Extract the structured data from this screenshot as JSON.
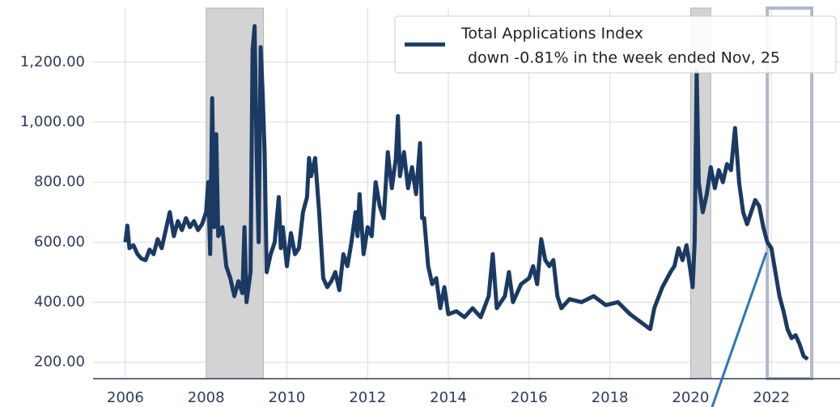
{
  "chart_data": {
    "type": "line",
    "xlim": [
      2005.2,
      2023.7
    ],
    "ylim": [
      145,
      1380
    ],
    "xticks": [
      2006,
      2008,
      2010,
      2012,
      2014,
      2016,
      2018,
      2020,
      2022
    ],
    "yticks": [
      {
        "value": 200,
        "label": "200.00"
      },
      {
        "value": 400,
        "label": "400.00"
      },
      {
        "value": 600,
        "label": "600.00"
      },
      {
        "value": 800,
        "label": "800.00"
      },
      {
        "value": 1000,
        "label": "1,000.00"
      },
      {
        "value": 1200,
        "label": "1,200.00"
      }
    ],
    "grid": true,
    "legend": "upper right",
    "shaded_regions": [
      [
        2008.0,
        2009.42
      ],
      [
        2020.0,
        2020.5
      ]
    ],
    "highlight_box": [
      2021.9,
      2023.0
    ],
    "series": [
      {
        "name": "Total Applications Index",
        "note": "down -0.81% in the week ended Nov, 25",
        "color": "#1b3a63",
        "x": [
          2006.0,
          2006.05,
          2006.1,
          2006.2,
          2006.3,
          2006.4,
          2006.5,
          2006.6,
          2006.7,
          2006.8,
          2006.9,
          2007.0,
          2007.1,
          2007.2,
          2007.3,
          2007.4,
          2007.5,
          2007.6,
          2007.7,
          2007.8,
          2007.9,
          2008.0,
          2008.05,
          2008.1,
          2008.15,
          2008.2,
          2008.25,
          2008.3,
          2008.4,
          2008.5,
          2008.6,
          2008.7,
          2008.8,
          2008.9,
          2008.95,
          2009.0,
          2009.05,
          2009.1,
          2009.15,
          2009.2,
          2009.25,
          2009.3,
          2009.35,
          2009.4,
          2009.45,
          2009.5,
          2009.6,
          2009.7,
          2009.8,
          2009.85,
          2009.9,
          2010.0,
          2010.1,
          2010.2,
          2010.3,
          2010.4,
          2010.5,
          2010.55,
          2010.6,
          2010.7,
          2010.8,
          2010.9,
          2011.0,
          2011.1,
          2011.2,
          2011.3,
          2011.4,
          2011.5,
          2011.6,
          2011.7,
          2011.75,
          2011.8,
          2011.9,
          2012.0,
          2012.1,
          2012.2,
          2012.3,
          2012.4,
          2012.5,
          2012.6,
          2012.7,
          2012.75,
          2012.8,
          2012.9,
          2013.0,
          2013.1,
          2013.2,
          2013.3,
          2013.35,
          2013.4,
          2013.5,
          2013.6,
          2013.7,
          2013.8,
          2013.9,
          2014.0,
          2014.2,
          2014.4,
          2014.6,
          2014.8,
          2015.0,
          2015.1,
          2015.2,
          2015.4,
          2015.5,
          2015.6,
          2015.8,
          2016.0,
          2016.1,
          2016.2,
          2016.3,
          2016.4,
          2016.5,
          2016.6,
          2016.7,
          2016.8,
          2017.0,
          2017.3,
          2017.6,
          2017.9,
          2018.2,
          2018.5,
          2018.8,
          2019.0,
          2019.1,
          2019.3,
          2019.5,
          2019.6,
          2019.7,
          2019.8,
          2019.9,
          2020.0,
          2020.05,
          2020.1,
          2020.15,
          2020.2,
          2020.3,
          2020.4,
          2020.5,
          2020.6,
          2020.7,
          2020.8,
          2020.9,
          2021.0,
          2021.1,
          2021.2,
          2021.3,
          2021.4,
          2021.5,
          2021.6,
          2021.7,
          2021.8,
          2021.9,
          2022.0,
          2022.1,
          2022.2,
          2022.3,
          2022.4,
          2022.5,
          2022.6,
          2022.7,
          2022.8,
          2022.9
        ],
        "values": [
          600,
          655,
          580,
          590,
          560,
          545,
          540,
          575,
          560,
          610,
          580,
          640,
          700,
          620,
          670,
          640,
          680,
          650,
          670,
          640,
          660,
          700,
          800,
          560,
          1080,
          650,
          960,
          620,
          650,
          520,
          480,
          420,
          470,
          430,
          650,
          400,
          450,
          500,
          1240,
          1320,
          900,
          600,
          1250,
          1100,
          900,
          500,
          560,
          600,
          750,
          580,
          650,
          520,
          630,
          560,
          580,
          700,
          750,
          880,
          820,
          880,
          700,
          480,
          450,
          470,
          500,
          440,
          560,
          520,
          600,
          700,
          620,
          760,
          560,
          650,
          620,
          800,
          720,
          680,
          900,
          780,
          880,
          1020,
          820,
          900,
          780,
          850,
          760,
          930,
          680,
          680,
          520,
          460,
          480,
          380,
          450,
          360,
          370,
          350,
          380,
          350,
          420,
          560,
          380,
          420,
          500,
          400,
          460,
          480,
          520,
          460,
          610,
          540,
          520,
          540,
          420,
          380,
          410,
          400,
          420,
          390,
          400,
          360,
          330,
          310,
          380,
          450,
          500,
          520,
          580,
          540,
          590,
          500,
          450,
          600,
          1170,
          800,
          700,
          760,
          850,
          780,
          840,
          800,
          860,
          840,
          980,
          800,
          700,
          660,
          700,
          740,
          720,
          650,
          600,
          580,
          500,
          420,
          370,
          310,
          280,
          290,
          260,
          220,
          210
        ]
      }
    ]
  }
}
